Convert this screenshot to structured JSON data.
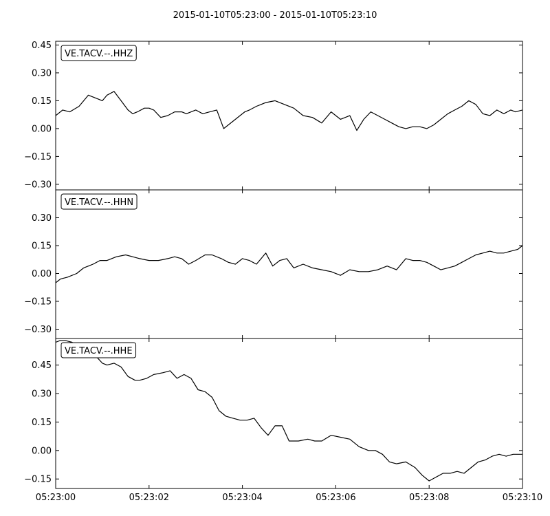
{
  "figure": {
    "title": "2015-01-10T05:23:00  -  2015-01-10T05:23:10",
    "x_ticks": [
      "05:23:00",
      "05:23:02",
      "05:23:04",
      "05:23:06",
      "05:23:08",
      "05:23:10"
    ]
  },
  "chart_data": [
    {
      "type": "line",
      "name": "VE.TACV.--.HHZ",
      "x_unit": "seconds after 05:23:00",
      "xlim": [
        0,
        10
      ],
      "ylim": [
        -0.33,
        0.47
      ],
      "y_ticks": [
        "0.45",
        "0.30",
        "0.15",
        "0.00",
        "−0.15",
        "−0.30"
      ],
      "y_tick_values": [
        0.45,
        0.3,
        0.15,
        0.0,
        -0.15,
        -0.3
      ],
      "legend": "top-left",
      "grid": false,
      "x": [
        0.0,
        0.15,
        0.3,
        0.5,
        0.7,
        0.9,
        1.0,
        1.1,
        1.25,
        1.4,
        1.55,
        1.65,
        1.75,
        1.9,
        2.0,
        2.1,
        2.25,
        2.4,
        2.55,
        2.7,
        2.8,
        3.0,
        3.15,
        3.3,
        3.45,
        3.6,
        3.7,
        3.8,
        3.95,
        4.05,
        4.15,
        4.3,
        4.5,
        4.7,
        4.9,
        5.1,
        5.3,
        5.5,
        5.7,
        5.9,
        6.1,
        6.3,
        6.45,
        6.6,
        6.75,
        6.9,
        7.05,
        7.2,
        7.35,
        7.5,
        7.65,
        7.8,
        7.95,
        8.1,
        8.25,
        8.4,
        8.55,
        8.7,
        8.85,
        9.0,
        9.15,
        9.3,
        9.45,
        9.6,
        9.75,
        9.85,
        10.0
      ],
      "y": [
        0.07,
        0.1,
        0.09,
        0.12,
        0.18,
        0.16,
        0.15,
        0.18,
        0.2,
        0.15,
        0.1,
        0.08,
        0.09,
        0.11,
        0.11,
        0.1,
        0.06,
        0.07,
        0.09,
        0.09,
        0.08,
        0.1,
        0.08,
        0.09,
        0.1,
        0.0,
        0.02,
        0.04,
        0.07,
        0.09,
        0.1,
        0.12,
        0.14,
        0.15,
        0.13,
        0.11,
        0.07,
        0.06,
        0.03,
        0.09,
        0.05,
        0.07,
        -0.01,
        0.05,
        0.09,
        0.07,
        0.05,
        0.03,
        0.01,
        0.0,
        0.01,
        0.01,
        0.0,
        0.02,
        0.05,
        0.08,
        0.1,
        0.12,
        0.15,
        0.13,
        0.08,
        0.07,
        0.1,
        0.08,
        0.1,
        0.09,
        0.1
      ]
    },
    {
      "type": "line",
      "name": "VE.TACV.--.HHN",
      "x_unit": "seconds after 05:23:00",
      "xlim": [
        0,
        10
      ],
      "ylim": [
        -0.35,
        0.45
      ],
      "y_ticks": [
        "0.30",
        "0.15",
        "0.00",
        "−0.15",
        "−0.30"
      ],
      "y_tick_values": [
        0.3,
        0.15,
        0.0,
        -0.15,
        -0.3
      ],
      "legend": "top-left",
      "grid": false,
      "x": [
        0.0,
        0.1,
        0.25,
        0.45,
        0.6,
        0.8,
        0.95,
        1.1,
        1.3,
        1.5,
        1.65,
        1.8,
        2.0,
        2.2,
        2.4,
        2.55,
        2.7,
        2.85,
        3.0,
        3.2,
        3.35,
        3.55,
        3.7,
        3.85,
        4.0,
        4.15,
        4.3,
        4.5,
        4.65,
        4.8,
        4.95,
        5.1,
        5.3,
        5.5,
        5.7,
        5.9,
        6.1,
        6.3,
        6.5,
        6.7,
        6.9,
        7.1,
        7.3,
        7.5,
        7.65,
        7.8,
        7.95,
        8.1,
        8.25,
        8.4,
        8.55,
        8.7,
        8.85,
        9.0,
        9.15,
        9.3,
        9.45,
        9.6,
        9.75,
        9.9,
        10.0
      ],
      "y": [
        -0.05,
        -0.03,
        -0.02,
        0.0,
        0.03,
        0.05,
        0.07,
        0.07,
        0.09,
        0.1,
        0.09,
        0.08,
        0.07,
        0.07,
        0.08,
        0.09,
        0.08,
        0.05,
        0.07,
        0.1,
        0.1,
        0.08,
        0.06,
        0.05,
        0.08,
        0.07,
        0.05,
        0.11,
        0.04,
        0.07,
        0.08,
        0.03,
        0.05,
        0.03,
        0.02,
        0.01,
        -0.01,
        0.02,
        0.01,
        0.01,
        0.02,
        0.04,
        0.02,
        0.08,
        0.07,
        0.07,
        0.06,
        0.04,
        0.02,
        0.03,
        0.04,
        0.06,
        0.08,
        0.1,
        0.11,
        0.12,
        0.11,
        0.11,
        0.12,
        0.13,
        0.15
      ]
    },
    {
      "type": "line",
      "name": "VE.TACV.--.HHE",
      "x_unit": "seconds after 05:23:00",
      "xlim": [
        0,
        10
      ],
      "ylim": [
        -0.2,
        0.59
      ],
      "y_ticks": [
        "0.45",
        "0.30",
        "0.15",
        "0.00",
        "−0.15"
      ],
      "y_tick_values": [
        0.45,
        0.3,
        0.15,
        0.0,
        -0.15
      ],
      "legend": "top-left",
      "grid": false,
      "x": [
        0.0,
        0.1,
        0.2,
        0.35,
        0.5,
        0.7,
        0.85,
        1.0,
        1.1,
        1.25,
        1.4,
        1.55,
        1.7,
        1.8,
        1.95,
        2.1,
        2.3,
        2.45,
        2.6,
        2.75,
        2.9,
        3.05,
        3.2,
        3.35,
        3.5,
        3.65,
        3.8,
        3.95,
        4.1,
        4.25,
        4.4,
        4.55,
        4.7,
        4.85,
        5.0,
        5.2,
        5.4,
        5.55,
        5.7,
        5.9,
        6.1,
        6.3,
        6.5,
        6.7,
        6.85,
        7.0,
        7.15,
        7.3,
        7.5,
        7.7,
        7.85,
        8.0,
        8.15,
        8.3,
        8.45,
        8.6,
        8.75,
        8.9,
        9.05,
        9.2,
        9.35,
        9.5,
        9.65,
        9.8,
        9.9,
        10.0
      ],
      "y": [
        0.57,
        0.58,
        0.58,
        0.57,
        0.55,
        0.53,
        0.5,
        0.46,
        0.45,
        0.46,
        0.44,
        0.39,
        0.37,
        0.37,
        0.38,
        0.4,
        0.41,
        0.42,
        0.38,
        0.4,
        0.38,
        0.32,
        0.31,
        0.28,
        0.21,
        0.18,
        0.17,
        0.16,
        0.16,
        0.17,
        0.12,
        0.08,
        0.13,
        0.13,
        0.05,
        0.05,
        0.06,
        0.05,
        0.05,
        0.08,
        0.07,
        0.06,
        0.02,
        0.0,
        0.0,
        -0.02,
        -0.06,
        -0.07,
        -0.06,
        -0.09,
        -0.13,
        -0.16,
        -0.14,
        -0.12,
        -0.12,
        -0.11,
        -0.12,
        -0.09,
        -0.06,
        -0.05,
        -0.03,
        -0.02,
        -0.03,
        -0.02,
        -0.02,
        -0.02
      ]
    }
  ]
}
